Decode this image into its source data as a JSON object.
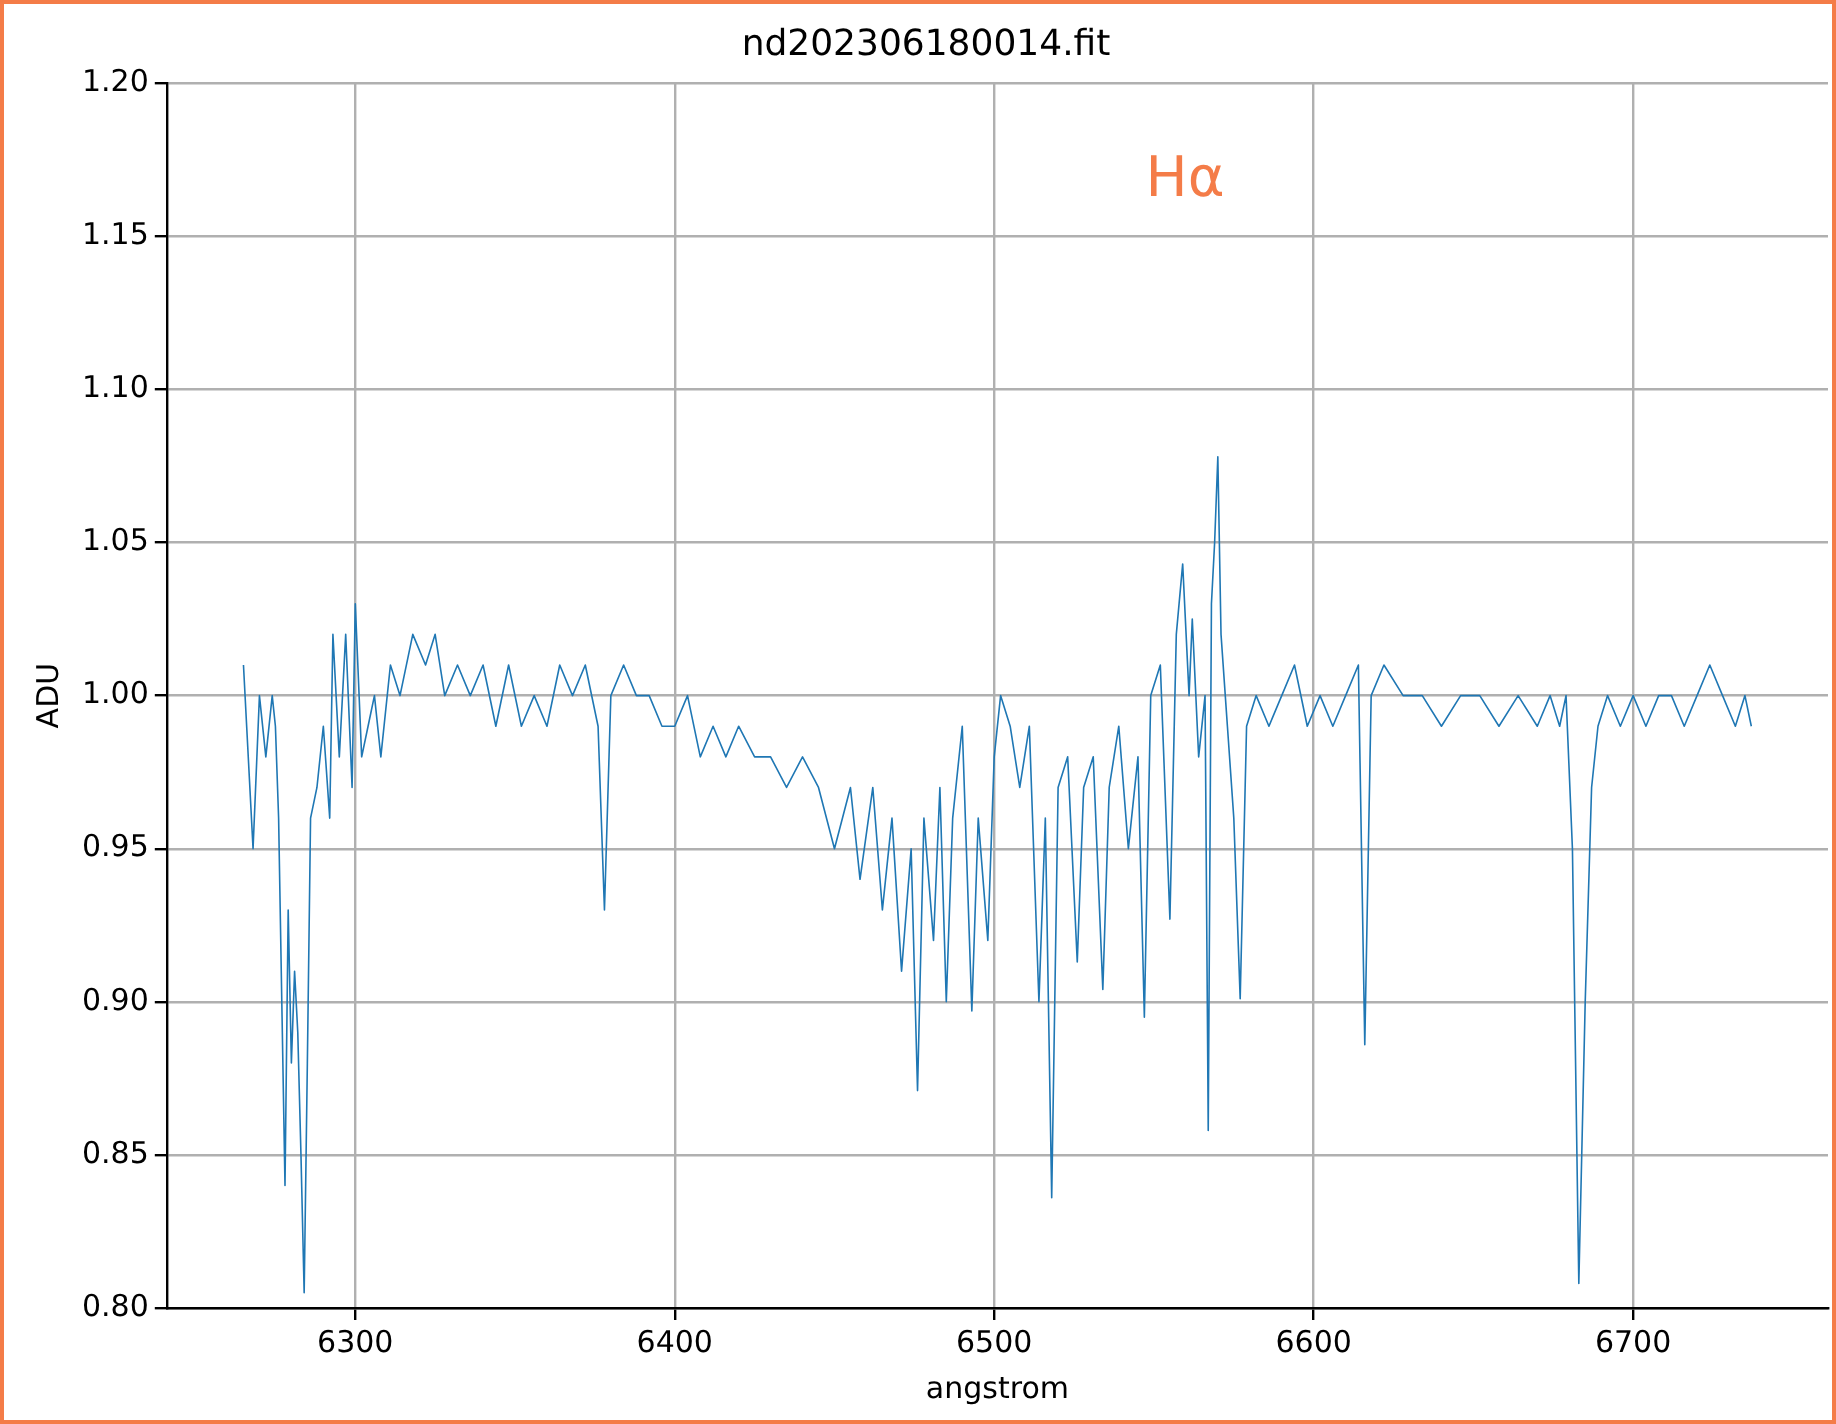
{
  "chart_data": {
    "type": "line",
    "title": "nd202306180014.fit",
    "xlabel": "angstrom",
    "ylabel": "ADU",
    "annotations": [
      "Hα"
    ],
    "xlim": [
      6241,
      6761
    ],
    "xticks": [
      6300,
      6400,
      6500,
      6600,
      6700
    ],
    "ylim": [
      0.8,
      1.2
    ],
    "yticks": [
      {
        "value": 0.8,
        "label": "0.80"
      },
      {
        "value": 0.85,
        "label": "0.85"
      },
      {
        "value": 0.9,
        "label": "0.90"
      },
      {
        "value": 0.95,
        "label": "0.95"
      },
      {
        "value": 1.0,
        "label": "1.00"
      },
      {
        "value": 1.05,
        "label": "1.05"
      },
      {
        "value": 1.1,
        "label": "1.10"
      },
      {
        "value": 1.15,
        "label": "1.15"
      },
      {
        "value": 1.2,
        "label": "1.20"
      }
    ],
    "grid": true,
    "marker": "none",
    "line_style": "solid",
    "series": [
      {
        "color": "#1f77b4",
        "x": [
          6265,
          6266,
          6268,
          6270,
          6272,
          6274,
          6275,
          6276,
          6278,
          6279,
          6280,
          6281,
          6282,
          6283,
          6284,
          6285,
          6286,
          6288,
          6290,
          6292,
          6293,
          6295,
          6297,
          6299,
          6300,
          6302,
          6304,
          6306,
          6308,
          6311,
          6314,
          6318,
          6322,
          6325,
          6328,
          6332,
          6336,
          6340,
          6344,
          6348,
          6352,
          6356,
          6360,
          6364,
          6368,
          6372,
          6376,
          6378,
          6380,
          6384,
          6388,
          6392,
          6396,
          6400,
          6404,
          6408,
          6412,
          6416,
          6420,
          6425,
          6430,
          6435,
          6440,
          6445,
          6450,
          6455,
          6458,
          6462,
          6465,
          6468,
          6471,
          6474,
          6476,
          6478,
          6481,
          6483,
          6485,
          6487,
          6490,
          6493,
          6495,
          6498,
          6500,
          6502,
          6505,
          6508,
          6511,
          6514,
          6516,
          6518,
          6520,
          6523,
          6526,
          6528,
          6531,
          6534,
          6536,
          6539,
          6542,
          6545,
          6547,
          6549,
          6552,
          6555,
          6557,
          6559,
          6561,
          6562,
          6564,
          6566,
          6567,
          6568,
          6569,
          6570,
          6571,
          6573,
          6575,
          6577,
          6579,
          6582,
          6586,
          6590,
          6594,
          6598,
          6602,
          6606,
          6610,
          6614,
          6616,
          6618,
          6622,
          6628,
          6634,
          6640,
          6646,
          6652,
          6658,
          6664,
          6670,
          6674,
          6677,
          6679,
          6681,
          6683,
          6685,
          6687,
          6689,
          6692,
          6696,
          6700,
          6704,
          6708,
          6712,
          6716,
          6720,
          6724,
          6728,
          6732,
          6735,
          6737
        ],
        "values": [
          1.01,
          0.99,
          0.95,
          1.0,
          0.98,
          1.0,
          0.99,
          0.96,
          0.84,
          0.93,
          0.88,
          0.91,
          0.89,
          0.85,
          0.805,
          0.88,
          0.96,
          0.97,
          0.99,
          0.96,
          1.02,
          0.98,
          1.02,
          0.97,
          1.03,
          0.98,
          0.99,
          1.0,
          0.98,
          1.01,
          1.0,
          1.02,
          1.01,
          1.02,
          1.0,
          1.01,
          1.0,
          1.01,
          0.99,
          1.01,
          0.99,
          1.0,
          0.99,
          1.01,
          1.0,
          1.01,
          0.99,
          0.93,
          1.0,
          1.01,
          1.0,
          1.0,
          0.99,
          0.99,
          1.0,
          0.98,
          0.99,
          0.98,
          0.99,
          0.98,
          0.98,
          0.97,
          0.98,
          0.97,
          0.95,
          0.97,
          0.94,
          0.97,
          0.93,
          0.96,
          0.91,
          0.95,
          0.871,
          0.96,
          0.92,
          0.97,
          0.9,
          0.96,
          0.99,
          0.897,
          0.96,
          0.92,
          0.98,
          1.0,
          0.99,
          0.97,
          0.99,
          0.9,
          0.96,
          0.836,
          0.97,
          0.98,
          0.913,
          0.97,
          0.98,
          0.904,
          0.97,
          0.99,
          0.95,
          0.98,
          0.895,
          1.0,
          1.01,
          0.927,
          1.02,
          1.043,
          1.0,
          1.025,
          0.98,
          1.0,
          0.858,
          1.03,
          1.05,
          1.078,
          1.02,
          0.99,
          0.96,
          0.901,
          0.99,
          1.0,
          0.99,
          1.0,
          1.01,
          0.99,
          1.0,
          0.99,
          1.0,
          1.01,
          0.886,
          1.0,
          1.01,
          1.0,
          1.0,
          0.99,
          1.0,
          1.0,
          0.99,
          1.0,
          0.99,
          1.0,
          0.99,
          1.0,
          0.95,
          0.808,
          0.9,
          0.97,
          0.99,
          1.0,
          0.99,
          1.0,
          0.99,
          1.0,
          1.0,
          0.99,
          1.0,
          1.01,
          1.0,
          0.99,
          1.0,
          0.99
        ]
      }
    ]
  }
}
